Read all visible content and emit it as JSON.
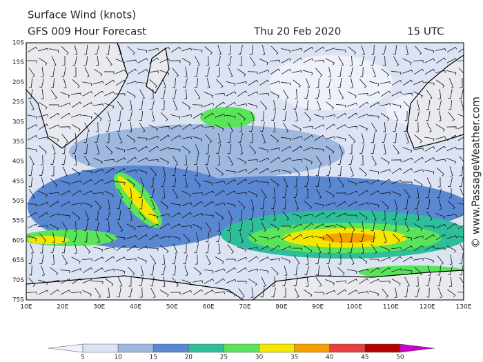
{
  "header": {
    "title": "Surface Wind (knots)",
    "subtitle": "GFS 009 Hour Forecast",
    "date": "Thu 20 Feb 2020",
    "time": "15 UTC"
  },
  "map": {
    "lat_labels": [
      "10S",
      "15S",
      "20S",
      "25S",
      "30S",
      "35S",
      "40S",
      "45S",
      "50S",
      "55S",
      "60S",
      "65S",
      "70S",
      "75S"
    ],
    "lon_labels": [
      "10E",
      "20E",
      "30E",
      "40E",
      "50E",
      "60E",
      "70E",
      "80E",
      "90E",
      "100E",
      "110E",
      "120E",
      "130E"
    ]
  },
  "legend": {
    "labels": [
      "5",
      "10",
      "15",
      "20",
      "25",
      "30",
      "35",
      "40",
      "45",
      "50"
    ],
    "colors": [
      "#eef0fa",
      "#dce4f4",
      "#9fb8e0",
      "#5a87d2",
      "#2ebf9a",
      "#5ae45a",
      "#f5e600",
      "#f5a000",
      "#e84040",
      "#b80000",
      "#c800c8"
    ]
  },
  "watermark": "© www.PassageWeather.com"
}
